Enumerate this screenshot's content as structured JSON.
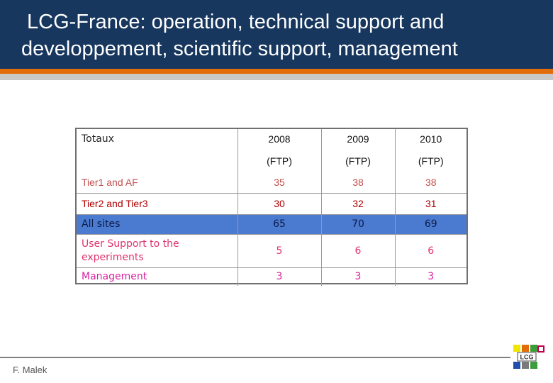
{
  "slide": {
    "title_line1": "LCG-France: operation, technical support and",
    "title_line2": "developpement, scientific support, management",
    "author": "F. Malek"
  },
  "table": {
    "header": {
      "label": "Totaux",
      "years": [
        "2008",
        "2009",
        "2010"
      ],
      "unit": "(FTP)"
    },
    "rows": [
      {
        "label": "Tier1 and AF",
        "values": [
          "35",
          "38",
          "38"
        ]
      },
      {
        "label": "Tier2 and Tier3",
        "values": [
          "30",
          "32",
          "31"
        ]
      },
      {
        "label": "All sites",
        "values": [
          "65",
          "70",
          "69"
        ]
      },
      {
        "label": "User Support to the experiments",
        "values": [
          "5",
          "6",
          "6"
        ]
      },
      {
        "label": "Management",
        "values": [
          "3",
          "3",
          "3"
        ]
      }
    ]
  },
  "logo": {
    "text": "LCG"
  },
  "colors": {
    "title_bg": "#17375e",
    "accent_orange": "#e36c0a",
    "all_sites_bg": "#4a7bd1"
  }
}
